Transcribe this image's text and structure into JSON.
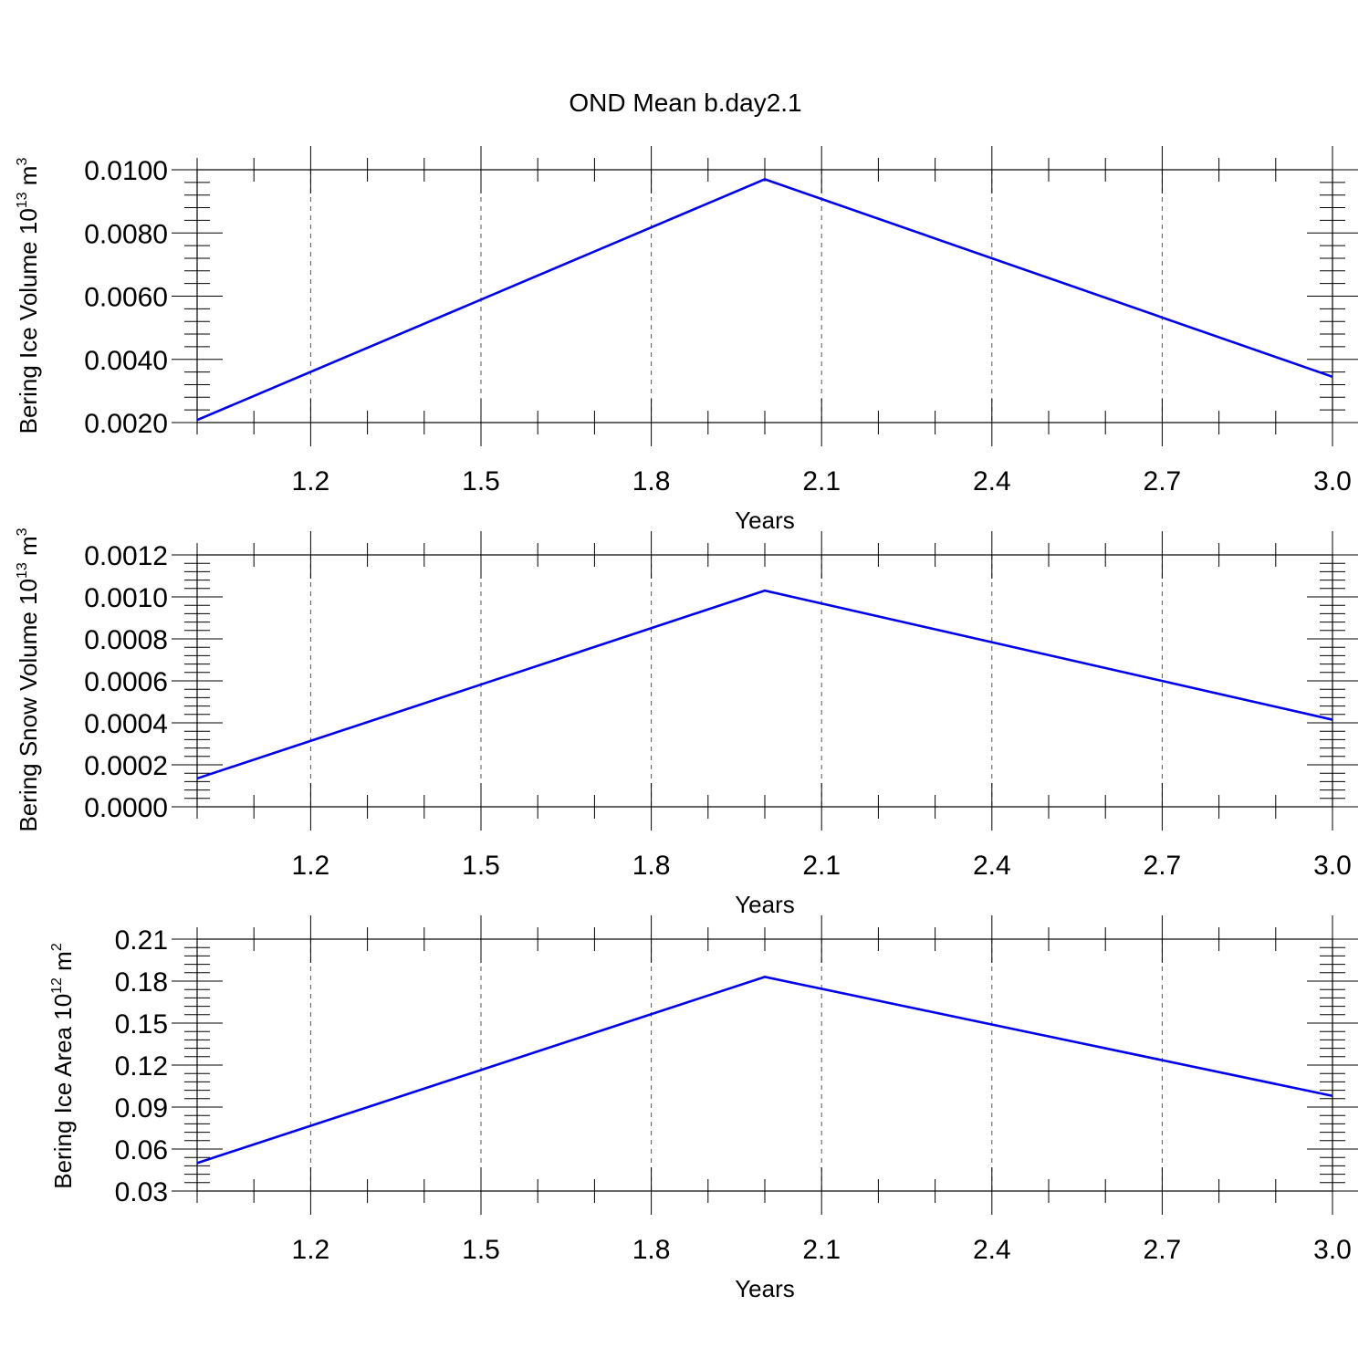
{
  "title": "OND Mean b.day2.1",
  "colors": {
    "series": "#0000ee",
    "axis": "#000000",
    "grid": "#555555"
  },
  "chart_data": [
    {
      "type": "line",
      "ylabel": {
        "prefix": "Bering Ice Volume 10",
        "exp": "13",
        "unit": " m",
        "unit_exp": "3"
      },
      "xlabel": "Years",
      "xlim": [
        1.0,
        3.0
      ],
      "xticks": [
        "1.2",
        "1.5",
        "1.8",
        "2.1",
        "2.4",
        "2.7",
        "3.0"
      ],
      "ylim": [
        0.002,
        0.01
      ],
      "yticks": [
        "0.0020",
        "0.0040",
        "0.0060",
        "0.0080",
        "0.0100"
      ],
      "grid": "x-dashed",
      "series": [
        {
          "x": [
            1.0,
            2.0,
            3.0
          ],
          "values": [
            0.00208,
            0.0097,
            0.00345
          ]
        }
      ]
    },
    {
      "type": "line",
      "ylabel": {
        "prefix": "Bering Snow Volume 10",
        "exp": "13",
        "unit": " m",
        "unit_exp": "3"
      },
      "xlabel": "Years",
      "xlim": [
        1.0,
        3.0
      ],
      "xticks": [
        "1.2",
        "1.5",
        "1.8",
        "2.1",
        "2.4",
        "2.7",
        "3.0"
      ],
      "ylim": [
        0.0,
        0.0012
      ],
      "yticks": [
        "0.0000",
        "0.0002",
        "0.0004",
        "0.0006",
        "0.0008",
        "0.0010",
        "0.0012"
      ],
      "grid": "x-dashed",
      "series": [
        {
          "x": [
            1.0,
            2.0,
            3.0
          ],
          "values": [
            0.000135,
            0.00103,
            0.000415
          ]
        }
      ]
    },
    {
      "type": "line",
      "ylabel": {
        "prefix": "Bering Ice Area 10",
        "exp": "12",
        "unit": " m",
        "unit_exp": "2"
      },
      "xlabel": "Years",
      "xlim": [
        1.0,
        3.0
      ],
      "xticks": [
        "1.2",
        "1.5",
        "1.8",
        "2.1",
        "2.4",
        "2.7",
        "3.0"
      ],
      "ylim": [
        0.03,
        0.21
      ],
      "yticks": [
        "0.03",
        "0.06",
        "0.09",
        "0.12",
        "0.15",
        "0.18",
        "0.21"
      ],
      "grid": "x-dashed",
      "series": [
        {
          "x": [
            1.0,
            2.0,
            3.0
          ],
          "values": [
            0.05,
            0.183,
            0.098
          ]
        }
      ]
    }
  ]
}
